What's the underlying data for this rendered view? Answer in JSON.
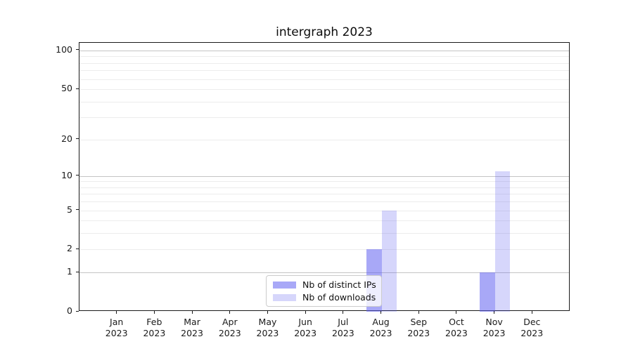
{
  "title": "intergraph 2023",
  "chart_data": {
    "type": "bar",
    "title": "intergraph 2023",
    "categories": [
      "Jan",
      "Feb",
      "Mar",
      "Apr",
      "May",
      "Jun",
      "Jul",
      "Aug",
      "Sep",
      "Oct",
      "Nov",
      "Dec"
    ],
    "category_year": "2023",
    "series": [
      {
        "name": "Nb of distinct IPs",
        "color": "#6060f0",
        "alpha": 0.55,
        "values": [
          0,
          0,
          0,
          0,
          0,
          0,
          0,
          2,
          0,
          0,
          1,
          0
        ]
      },
      {
        "name": "Nb of downloads",
        "color": "#6060f0",
        "alpha": 0.26,
        "values": [
          0,
          0,
          0,
          0,
          0,
          0,
          0,
          5,
          0,
          0,
          11,
          0
        ]
      }
    ],
    "xlabel": "",
    "ylabel": "",
    "yscale": "log1p",
    "ylim": [
      0,
      115
    ],
    "yticks": [
      0,
      1,
      2,
      5,
      10,
      20,
      50,
      100
    ],
    "major_gridlines": [
      1,
      10,
      100
    ],
    "minor_gridlines": [
      2,
      3,
      4,
      5,
      6,
      7,
      8,
      9,
      20,
      30,
      40,
      50,
      60,
      70,
      80,
      90
    ],
    "grid": true,
    "legend_position": "lower-center-inside"
  },
  "colors": {
    "grid_major": "#c4c4c4",
    "grid_minor": "#ececec",
    "spine": "#1a1a1a",
    "background": "#ffffff"
  }
}
